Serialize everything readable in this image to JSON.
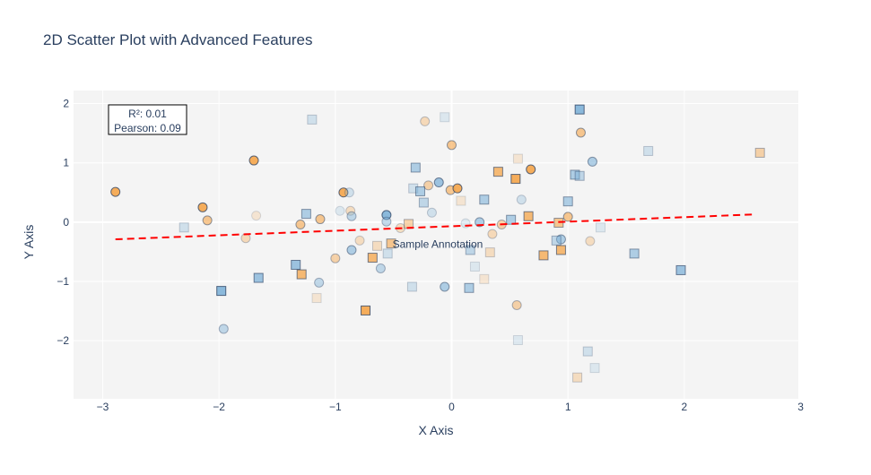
{
  "chart_data": {
    "type": "scatter",
    "title": "2D Scatter Plot with Advanced Features",
    "xlabel": "X Axis",
    "ylabel": "Y Axis",
    "xlim": [
      -3.25,
      2.98
    ],
    "ylim": [
      -2.98,
      2.22
    ],
    "x_ticks": [
      -3,
      -2,
      -1,
      0,
      1,
      2,
      3
    ],
    "x_tick_labels": [
      "−3",
      "−2",
      "−1",
      "0",
      "1",
      "2",
      "3"
    ],
    "y_ticks": [
      -2,
      -1,
      0,
      1,
      2
    ],
    "y_tick_labels": [
      "−2",
      "−1",
      "0",
      "1",
      "2"
    ],
    "grid": true,
    "legend": "none",
    "colors": {
      "orange": "#f5a54a",
      "blue": "#7fb2d8",
      "regression": "#ff0000",
      "plot_bg": "#f4f4f4",
      "grid": "#ffffff",
      "text": "#2a3f5f"
    },
    "series": [
      {
        "marker": "circle",
        "color": "#f5a54a",
        "points": [
          {
            "x": -2.89,
            "y": 0.51,
            "o": 0.9
          },
          {
            "x": -2.14,
            "y": 0.25,
            "o": 0.9
          },
          {
            "x": -2.1,
            "y": 0.03,
            "o": 0.6
          },
          {
            "x": -1.77,
            "y": -0.27,
            "o": 0.35
          },
          {
            "x": -1.7,
            "y": 1.04,
            "o": 0.9
          },
          {
            "x": -1.68,
            "y": 0.11,
            "o": 0.2
          },
          {
            "x": -1.3,
            "y": -0.04,
            "o": 0.6
          },
          {
            "x": -1.13,
            "y": 0.05,
            "o": 0.6
          },
          {
            "x": -1.0,
            "y": -0.61,
            "o": 0.45
          },
          {
            "x": -0.93,
            "y": 0.5,
            "o": 0.9
          },
          {
            "x": -0.87,
            "y": 0.19,
            "o": 0.3
          },
          {
            "x": -0.79,
            "y": -0.31,
            "o": 0.3
          },
          {
            "x": -0.44,
            "y": -0.1,
            "o": 0.3
          },
          {
            "x": -0.23,
            "y": 1.7,
            "o": 0.35
          },
          {
            "x": -0.2,
            "y": 0.62,
            "o": 0.45
          },
          {
            "x": -0.01,
            "y": 0.54,
            "o": 0.6
          },
          {
            "x": 0.0,
            "y": 1.3,
            "o": 0.6
          },
          {
            "x": 0.05,
            "y": 0.57,
            "o": 0.9
          },
          {
            "x": 0.35,
            "y": -0.2,
            "o": 0.35
          },
          {
            "x": 0.43,
            "y": -0.04,
            "o": 0.45
          },
          {
            "x": 0.56,
            "y": -1.4,
            "o": 0.45
          },
          {
            "x": 0.68,
            "y": 0.89,
            "o": 0.9
          },
          {
            "x": 1.0,
            "y": 0.09,
            "o": 0.6
          },
          {
            "x": 1.11,
            "y": 1.51,
            "o": 0.6
          },
          {
            "x": 1.19,
            "y": -0.32,
            "o": 0.3
          }
        ]
      },
      {
        "marker": "circle",
        "color": "#7fb2d8",
        "points": [
          {
            "x": -1.96,
            "y": -1.8,
            "o": 0.45
          },
          {
            "x": -1.14,
            "y": -1.02,
            "o": 0.45
          },
          {
            "x": -0.96,
            "y": 0.19,
            "o": 0.2
          },
          {
            "x": -0.88,
            "y": 0.5,
            "o": 0.3
          },
          {
            "x": -0.86,
            "y": 0.1,
            "o": 0.45
          },
          {
            "x": -0.86,
            "y": -0.47,
            "o": 0.6
          },
          {
            "x": -0.61,
            "y": -0.78,
            "o": 0.45
          },
          {
            "x": -0.56,
            "y": 0.12,
            "o": 0.9
          },
          {
            "x": -0.56,
            "y": 0.01,
            "o": 0.45
          },
          {
            "x": -0.17,
            "y": 0.16,
            "o": 0.3
          },
          {
            "x": -0.11,
            "y": 0.67,
            "o": 0.75
          },
          {
            "x": -0.06,
            "y": -1.09,
            "o": 0.6
          },
          {
            "x": 0.12,
            "y": -0.02,
            "o": 0.2
          },
          {
            "x": 0.24,
            "y": 0.0,
            "o": 0.6
          },
          {
            "x": 0.6,
            "y": 0.38,
            "o": 0.3
          },
          {
            "x": 0.94,
            "y": -0.29,
            "o": 0.6
          },
          {
            "x": 1.21,
            "y": 1.02,
            "o": 0.6
          }
        ]
      },
      {
        "marker": "square",
        "color": "#f5a54a",
        "points": [
          {
            "x": -1.29,
            "y": -0.88,
            "o": 0.75
          },
          {
            "x": -1.16,
            "y": -1.28,
            "o": 0.2
          },
          {
            "x": -0.74,
            "y": -1.49,
            "o": 0.9
          },
          {
            "x": -0.68,
            "y": -0.6,
            "o": 0.75
          },
          {
            "x": -0.64,
            "y": -0.4,
            "o": 0.3
          },
          {
            "x": -0.52,
            "y": -0.36,
            "o": 0.6
          },
          {
            "x": -0.37,
            "y": -0.03,
            "o": 0.45
          },
          {
            "x": 0.08,
            "y": 0.36,
            "o": 0.2
          },
          {
            "x": 0.28,
            "y": -0.96,
            "o": 0.2
          },
          {
            "x": 0.33,
            "y": -0.51,
            "o": 0.3
          },
          {
            "x": 0.4,
            "y": 0.85,
            "o": 0.75
          },
          {
            "x": 0.55,
            "y": 0.73,
            "o": 0.9
          },
          {
            "x": 0.57,
            "y": 1.07,
            "o": 0.2
          },
          {
            "x": 0.66,
            "y": 0.1,
            "o": 0.75
          },
          {
            "x": 0.79,
            "y": -0.56,
            "o": 0.75
          },
          {
            "x": 0.92,
            "y": -0.01,
            "o": 0.6
          },
          {
            "x": 0.94,
            "y": -0.47,
            "o": 0.75
          },
          {
            "x": 1.08,
            "y": -2.62,
            "o": 0.3
          },
          {
            "x": 2.65,
            "y": 1.17,
            "o": 0.45
          }
        ]
      },
      {
        "marker": "square",
        "color": "#7fb2d8",
        "points": [
          {
            "x": -2.3,
            "y": -0.09,
            "o": 0.3
          },
          {
            "x": -1.98,
            "y": -1.16,
            "o": 0.9
          },
          {
            "x": -1.66,
            "y": -0.94,
            "o": 0.75
          },
          {
            "x": -1.34,
            "y": -0.72,
            "o": 0.75
          },
          {
            "x": -1.25,
            "y": 0.14,
            "o": 0.6
          },
          {
            "x": -1.2,
            "y": 1.73,
            "o": 0.3
          },
          {
            "x": -0.55,
            "y": -0.53,
            "o": 0.3
          },
          {
            "x": -0.34,
            "y": -1.09,
            "o": 0.3
          },
          {
            "x": -0.33,
            "y": 0.57,
            "o": 0.3
          },
          {
            "x": -0.31,
            "y": 0.92,
            "o": 0.6
          },
          {
            "x": -0.27,
            "y": 0.52,
            "o": 0.6
          },
          {
            "x": -0.24,
            "y": 0.33,
            "o": 0.45
          },
          {
            "x": -0.06,
            "y": 1.77,
            "o": 0.2
          },
          {
            "x": 0.15,
            "y": -1.11,
            "o": 0.6
          },
          {
            "x": 0.16,
            "y": -0.47,
            "o": 0.45
          },
          {
            "x": 0.2,
            "y": -0.75,
            "o": 0.2
          },
          {
            "x": 0.28,
            "y": 0.38,
            "o": 0.6
          },
          {
            "x": 0.51,
            "y": 0.04,
            "o": 0.6
          },
          {
            "x": 0.57,
            "y": -1.99,
            "o": 0.2
          },
          {
            "x": 0.9,
            "y": -0.31,
            "o": 0.45
          },
          {
            "x": 1.0,
            "y": 0.35,
            "o": 0.6
          },
          {
            "x": 1.06,
            "y": 0.8,
            "o": 0.6
          },
          {
            "x": 1.1,
            "y": 1.9,
            "o": 0.9
          },
          {
            "x": 1.1,
            "y": 0.78,
            "o": 0.45
          },
          {
            "x": 1.17,
            "y": -2.18,
            "o": 0.3
          },
          {
            "x": 1.23,
            "y": -2.46,
            "o": 0.2
          },
          {
            "x": 1.28,
            "y": -0.09,
            "o": 0.2
          },
          {
            "x": 1.57,
            "y": -0.53,
            "o": 0.6
          },
          {
            "x": 1.69,
            "y": 1.2,
            "o": 0.3
          },
          {
            "x": 1.97,
            "y": -0.81,
            "o": 0.75
          }
        ]
      }
    ],
    "regression_line": {
      "x": [
        -2.89,
        2.6
      ],
      "y": [
        -0.29,
        0.13
      ]
    },
    "annotations": {
      "sample_text": "Sample Annotation",
      "sample_x": -0.12,
      "sample_y": -0.37,
      "stats_line1": "R²: 0.01",
      "stats_line2": "Pearson: 0.09"
    }
  }
}
